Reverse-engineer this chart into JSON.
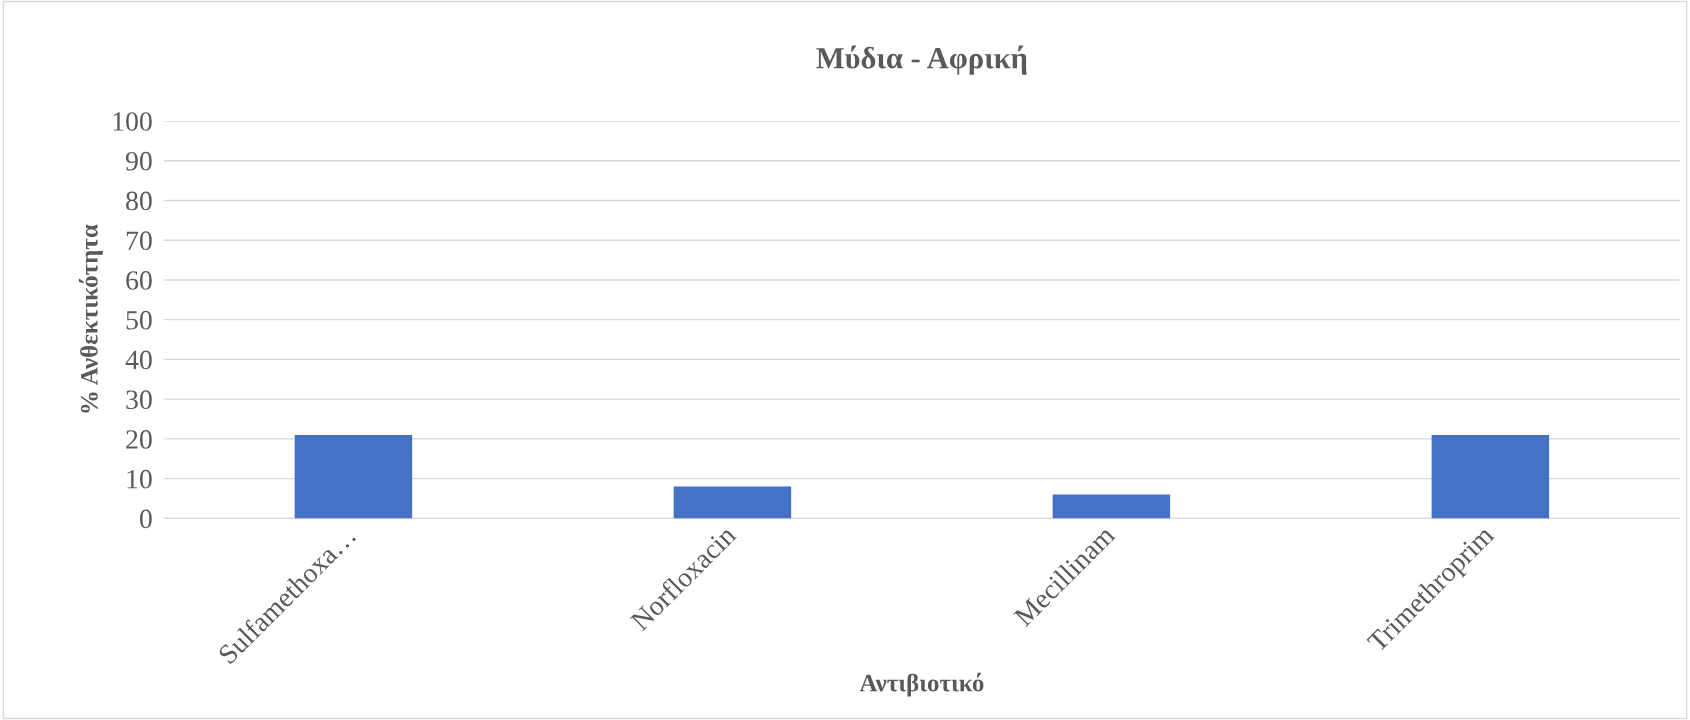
{
  "chart_data": {
    "type": "bar",
    "title": "Μύδια - Αφρική",
    "xlabel": "Αντιβιοτικό",
    "ylabel": "% Ανθεκτικότητα",
    "categories": [
      "Sulfamethoxa…",
      "Norfloxacin",
      "Mecillinam",
      "Trimethroprim"
    ],
    "values": [
      21,
      8,
      6,
      21
    ],
    "color": "#4472c4",
    "ylim": [
      0,
      100
    ],
    "yticks": [
      0,
      10,
      20,
      30,
      40,
      50,
      60,
      70,
      80,
      90,
      100
    ],
    "grid": "y",
    "legend": false
  }
}
